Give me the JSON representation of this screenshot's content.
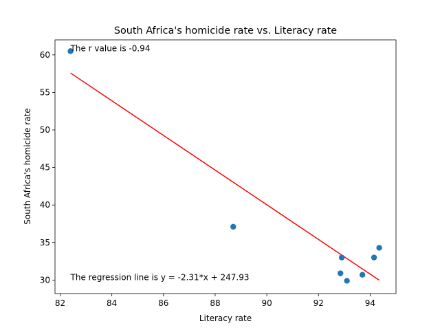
{
  "chart_data": {
    "type": "scatter",
    "title": "South Africa's homicide rate vs. Literacy rate",
    "xlabel": "Literacy rate",
    "ylabel": "South Africa's homicide rate",
    "xlim": [
      81.8,
      95.0
    ],
    "ylim": [
      28.2,
      62.0
    ],
    "xticks": [
      82,
      84,
      86,
      88,
      90,
      92,
      94
    ],
    "yticks": [
      30,
      35,
      40,
      45,
      50,
      55,
      60
    ],
    "grid": false,
    "points": [
      {
        "x": 82.4,
        "y": 60.5
      },
      {
        "x": 88.7,
        "y": 37.1
      },
      {
        "x": 92.9,
        "y": 33.0
      },
      {
        "x": 92.85,
        "y": 30.9
      },
      {
        "x": 93.1,
        "y": 29.9
      },
      {
        "x": 93.7,
        "y": 30.7
      },
      {
        "x": 94.15,
        "y": 33.0
      },
      {
        "x": 94.35,
        "y": 34.3
      }
    ],
    "regression": {
      "slope": -2.31,
      "intercept": 247.93,
      "x_start": 82.4,
      "x_end": 94.35,
      "color": "#ff0000"
    },
    "point_color": "#1f77b4",
    "annotations": {
      "r_value": "The r value is -0.94",
      "equation": "The regression line is y = -2.31*x + 247.93"
    }
  }
}
